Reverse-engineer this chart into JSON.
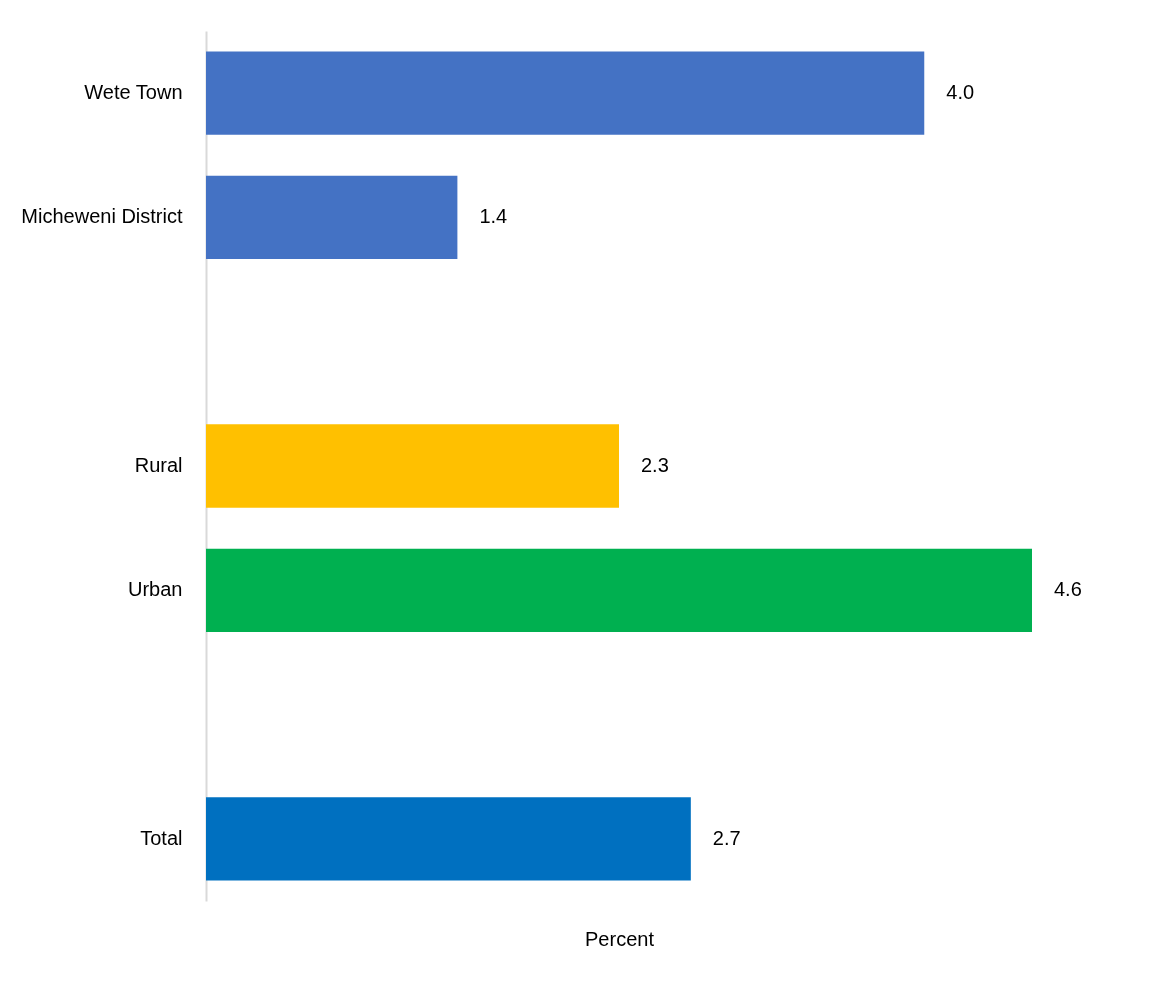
{
  "chart_data": {
    "type": "bar",
    "orientation": "horizontal",
    "xlabel": "Percent",
    "categories": [
      "Wete Town",
      "Micheweni District",
      null,
      "Rural",
      "Urban",
      null,
      "Total"
    ],
    "values": [
      4.0,
      1.4,
      null,
      2.3,
      4.6,
      null,
      2.7
    ],
    "value_labels": [
      "4.0",
      "1.4",
      null,
      "2.3",
      "4.6",
      null,
      "2.7"
    ],
    "colors": [
      "#4472c4",
      "#4472c4",
      null,
      "#ffc000",
      "#00b050",
      null,
      "#0070c0"
    ],
    "tick_labels": "y",
    "grid": false
  }
}
